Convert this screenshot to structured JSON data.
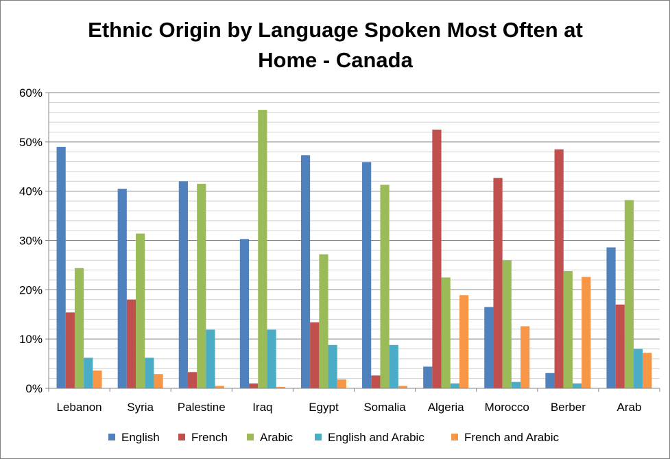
{
  "chart_data": {
    "type": "bar",
    "title_lines": [
      "Ethnic Origin by Language Spoken Most Often at",
      "Home - Canada"
    ],
    "categories": [
      "Lebanon",
      "Syria",
      "Palestine",
      "Iraq",
      "Egypt",
      "Somalia",
      "Algeria",
      "Morocco",
      "Berber",
      "Arab"
    ],
    "series": [
      {
        "name": "English",
        "color": "#4f81bd",
        "values": [
          49.0,
          40.5,
          42.0,
          30.3,
          47.3,
          45.9,
          4.4,
          16.5,
          3.1,
          28.6
        ]
      },
      {
        "name": "French",
        "color": "#c0504d",
        "values": [
          15.4,
          18.0,
          3.3,
          1.0,
          13.4,
          2.6,
          52.5,
          42.7,
          48.5,
          17.0
        ]
      },
      {
        "name": "Arabic",
        "color": "#9bbb59",
        "values": [
          24.4,
          31.4,
          41.5,
          56.5,
          27.2,
          41.3,
          22.5,
          26.0,
          23.8,
          38.2
        ]
      },
      {
        "name": "English and Arabic",
        "color": "#4bacc6",
        "values": [
          6.2,
          6.2,
          11.9,
          11.9,
          8.8,
          8.8,
          1.0,
          1.3,
          1.0,
          8.0
        ]
      },
      {
        "name": "French and Arabic",
        "color": "#f79646",
        "values": [
          3.6,
          2.9,
          0.5,
          0.3,
          1.8,
          0.5,
          18.9,
          12.6,
          22.6,
          7.2
        ]
      }
    ],
    "ylim": [
      0,
      60
    ],
    "yticks": [
      0,
      10,
      20,
      30,
      40,
      50,
      60
    ],
    "ytick_labels": [
      "0%",
      "10%",
      "20%",
      "30%",
      "40%",
      "50%",
      "60%"
    ],
    "grid": true,
    "legend_position": "bottom"
  }
}
